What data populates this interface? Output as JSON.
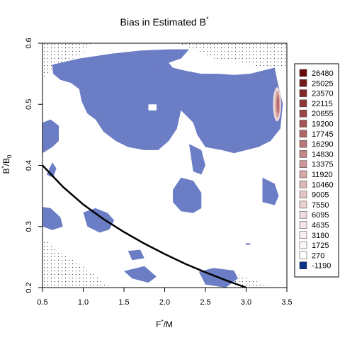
{
  "chart_data": {
    "type": "heatmap",
    "title": "Bias in Estimated B",
    "title_superscript": "*",
    "xlabel": "F",
    "xlabel_superscript": "*",
    "xlabel_suffix": "/M",
    "ylabel": "B",
    "ylabel_superscript": "*",
    "ylabel_mid": "/B",
    "ylabel_subscript": "0",
    "xlim": [
      0.5,
      3.5
    ],
    "ylim": [
      0.2,
      0.6
    ],
    "x_ticks": [
      "0.5",
      "1.0",
      "1.5",
      "2.0",
      "2.5",
      "3.0",
      "3.5"
    ],
    "y_ticks": [
      "0.2",
      "0.3",
      "0.4",
      "0.5",
      "0.6"
    ],
    "legend_position": "right",
    "legend": [
      {
        "label": "26480",
        "color": "#670a0a"
      },
      {
        "label": "25025",
        "color": "#751a1a"
      },
      {
        "label": "23570",
        "color": "#832929"
      },
      {
        "label": "22115",
        "color": "#8f3636"
      },
      {
        "label": "20655",
        "color": "#9b4646"
      },
      {
        "label": "19200",
        "color": "#a65656"
      },
      {
        "label": "17745",
        "color": "#b06767"
      },
      {
        "label": "16290",
        "color": "#ba7777"
      },
      {
        "label": "14830",
        "color": "#c48787"
      },
      {
        "label": "13375",
        "color": "#cd9797"
      },
      {
        "label": "11920",
        "color": "#d5a7a7"
      },
      {
        "label": "10460",
        "color": "#ddb6b6"
      },
      {
        "label": "9005",
        "color": "#e4c4c4"
      },
      {
        "label": "7550",
        "color": "#ebd1d1"
      },
      {
        "label": "6095",
        "color": "#f0dcdc"
      },
      {
        "label": "4635",
        "color": "#f5e6e6"
      },
      {
        "label": "3180",
        "color": "#f9efef"
      },
      {
        "label": "1725",
        "color": "#fcf6f6"
      },
      {
        "label": "270",
        "color": "#ffffff"
      },
      {
        "label": "-1190",
        "color": "#0d2f8c"
      }
    ],
    "region_colors": {
      "negative_bias": "#6b7dc4",
      "high_bias": "#b86a6a"
    },
    "curve": {
      "x": [
        0.5,
        0.75,
        1.0,
        1.25,
        1.5,
        1.75,
        2.0,
        2.25,
        2.5,
        2.75,
        3.0
      ],
      "y": [
        0.4,
        0.365,
        0.336,
        0.312,
        0.291,
        0.272,
        0.255,
        0.239,
        0.225,
        0.212,
        0.2
      ]
    },
    "negative_bias_regions": [
      [
        [
          0.62,
          0.565
        ],
        [
          0.95,
          0.575
        ],
        [
          1.35,
          0.583
        ],
        [
          1.7,
          0.588
        ],
        [
          2.05,
          0.59
        ],
        [
          2.3,
          0.59
        ],
        [
          2.2,
          0.575
        ],
        [
          2.05,
          0.568
        ],
        [
          2.1,
          0.56
        ],
        [
          2.25,
          0.555
        ],
        [
          2.45,
          0.55
        ],
        [
          2.65,
          0.55
        ],
        [
          2.85,
          0.548
        ],
        [
          3.05,
          0.55
        ],
        [
          3.2,
          0.555
        ],
        [
          3.35,
          0.56
        ],
        [
          3.38,
          0.54
        ],
        [
          3.45,
          0.5
        ],
        [
          3.42,
          0.46
        ],
        [
          3.3,
          0.44
        ],
        [
          3.15,
          0.43
        ],
        [
          3.0,
          0.425
        ],
        [
          2.85,
          0.42
        ],
        [
          2.7,
          0.425
        ],
        [
          2.5,
          0.43
        ],
        [
          2.4,
          0.45
        ],
        [
          2.35,
          0.47
        ],
        [
          2.2,
          0.49
        ],
        [
          2.15,
          0.46
        ],
        [
          2.05,
          0.44
        ],
        [
          1.92,
          0.425
        ],
        [
          1.75,
          0.425
        ],
        [
          1.55,
          0.43
        ],
        [
          1.4,
          0.44
        ],
        [
          1.25,
          0.455
        ],
        [
          1.15,
          0.475
        ],
        [
          1.05,
          0.485
        ],
        [
          0.98,
          0.505
        ],
        [
          0.95,
          0.525
        ],
        [
          0.85,
          0.535
        ],
        [
          0.72,
          0.54
        ],
        [
          0.63,
          0.55
        ]
      ],
      [
        [
          1.75,
          0.56
        ],
        [
          1.9,
          0.556
        ],
        [
          1.9,
          0.573
        ],
        [
          1.75,
          0.575
        ]
      ],
      [
        [
          0.5,
          0.47
        ],
        [
          0.6,
          0.475
        ],
        [
          0.7,
          0.465
        ],
        [
          0.7,
          0.44
        ],
        [
          0.62,
          0.43
        ],
        [
          0.5,
          0.42
        ]
      ],
      [
        [
          2.3,
          0.435
        ],
        [
          2.45,
          0.425
        ],
        [
          2.5,
          0.4
        ],
        [
          2.45,
          0.385
        ],
        [
          2.35,
          0.39
        ]
      ],
      [
        [
          0.55,
          0.385
        ],
        [
          0.62,
          0.405
        ],
        [
          0.67,
          0.395
        ],
        [
          0.63,
          0.38
        ]
      ],
      [
        [
          2.1,
          0.36
        ],
        [
          2.2,
          0.38
        ],
        [
          2.35,
          0.375
        ],
        [
          2.45,
          0.355
        ],
        [
          2.45,
          0.33
        ],
        [
          2.35,
          0.322
        ],
        [
          2.2,
          0.325
        ],
        [
          2.1,
          0.34
        ]
      ],
      [
        [
          3.2,
          0.38
        ],
        [
          3.35,
          0.37
        ],
        [
          3.4,
          0.35
        ],
        [
          3.35,
          0.335
        ],
        [
          3.2,
          0.34
        ]
      ],
      [
        [
          1.0,
          0.323
        ],
        [
          1.15,
          0.33
        ],
        [
          1.3,
          0.322
        ],
        [
          1.38,
          0.31
        ],
        [
          1.32,
          0.295
        ],
        [
          1.2,
          0.29
        ],
        [
          1.05,
          0.3
        ]
      ],
      [
        [
          0.5,
          0.332
        ],
        [
          0.6,
          0.33
        ],
        [
          0.72,
          0.315
        ],
        [
          0.75,
          0.3
        ],
        [
          0.62,
          0.294
        ],
        [
          0.5,
          0.3
        ]
      ],
      [
        [
          1.55,
          0.26
        ],
        [
          1.7,
          0.262
        ],
        [
          1.75,
          0.248
        ],
        [
          1.6,
          0.245
        ]
      ],
      [
        [
          2.42,
          0.226
        ],
        [
          2.6,
          0.232
        ],
        [
          2.85,
          0.228
        ],
        [
          2.9,
          0.215
        ],
        [
          2.75,
          0.2
        ],
        [
          2.5,
          0.205
        ]
      ],
      [
        [
          1.5,
          0.227
        ],
        [
          1.75,
          0.235
        ],
        [
          1.9,
          0.218
        ],
        [
          1.8,
          0.208
        ],
        [
          1.6,
          0.215
        ]
      ],
      [
        [
          3.0,
          0.273
        ],
        [
          3.05,
          0.272
        ],
        [
          3.05,
          0.27
        ],
        [
          3.0,
          0.27
        ]
      ]
    ],
    "white_holes": [
      [
        [
          1.8,
          0.5
        ],
        [
          1.9,
          0.5
        ],
        [
          1.9,
          0.49
        ],
        [
          1.8,
          0.49
        ]
      ],
      [
        [
          0.72,
          0.525
        ],
        [
          0.8,
          0.535
        ],
        [
          0.85,
          0.525
        ],
        [
          0.77,
          0.518
        ]
      ]
    ],
    "high_bias_region": {
      "center": [
        3.38,
        0.5
      ],
      "radius_x": 0.05,
      "radius_y": 0.028
    },
    "dotted_regions": [
      [
        [
          0.5,
          0.6
        ],
        [
          1.1,
          0.6
        ],
        [
          0.95,
          0.58
        ],
        [
          0.7,
          0.565
        ],
        [
          0.6,
          0.555
        ],
        [
          0.5,
          0.54
        ]
      ],
      [
        [
          2.15,
          0.6
        ],
        [
          3.5,
          0.6
        ],
        [
          3.5,
          0.56
        ],
        [
          3.2,
          0.56
        ],
        [
          2.9,
          0.57
        ],
        [
          2.6,
          0.575
        ],
        [
          2.35,
          0.59
        ]
      ],
      [
        [
          0.5,
          0.28
        ],
        [
          0.58,
          0.275
        ],
        [
          0.75,
          0.255
        ],
        [
          1.0,
          0.235
        ],
        [
          1.25,
          0.21
        ],
        [
          1.35,
          0.2
        ],
        [
          0.5,
          0.2
        ]
      ],
      [
        [
          2.8,
          0.21
        ],
        [
          3.0,
          0.2
        ],
        [
          3.3,
          0.2
        ],
        [
          3.1,
          0.212
        ],
        [
          2.9,
          0.222
        ]
      ]
    ]
  }
}
